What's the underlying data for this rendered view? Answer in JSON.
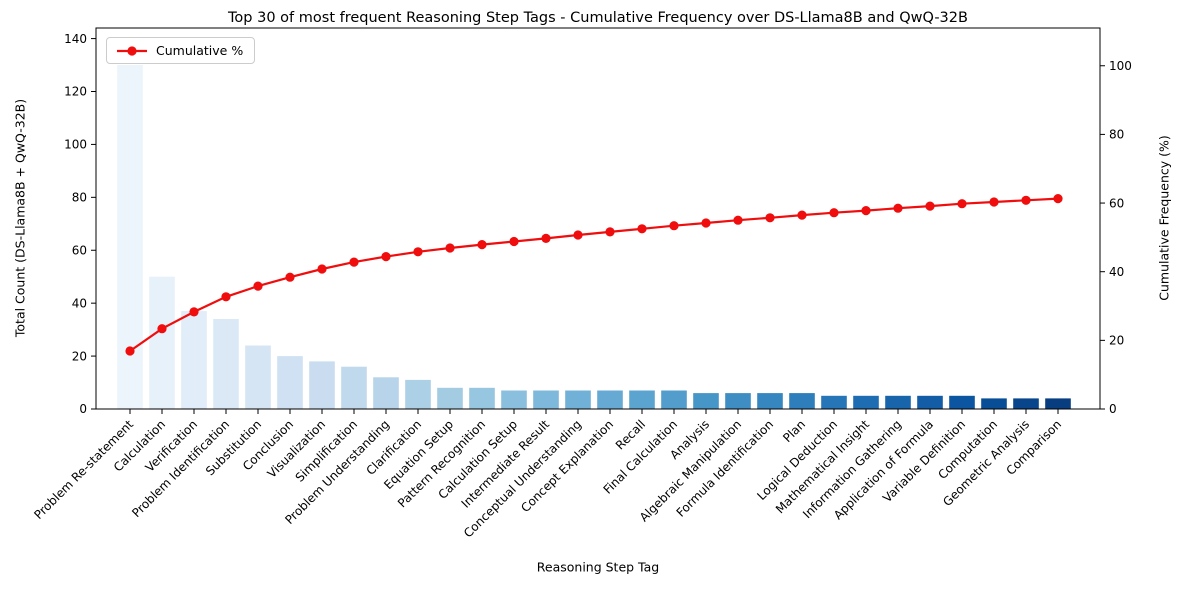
{
  "chart_data": {
    "type": "bar",
    "subtype": "pareto (bar + cumulative line)",
    "title": "Top 30 of most frequent Reasoning Step Tags - Cumulative Frequency over DS-Llama8B and QwQ-32B",
    "xlabel": "Reasoning Step Tag",
    "categories": [
      "Problem Re-statement",
      "Calculation",
      "Verification",
      "Problem Identification",
      "Substitution",
      "Conclusion",
      "Visualization",
      "Simplification",
      "Problem Understanding",
      "Clarification",
      "Equation Setup",
      "Pattern Recognition",
      "Calculation Setup",
      "Intermediate Result",
      "Conceptual Understanding",
      "Concept Explanation",
      "Recall",
      "Final Calculation",
      "Analysis",
      "Algebraic Manipulation",
      "Formula Identification",
      "Plan",
      "Logical Deduction",
      "Mathematical Insight",
      "Information Gathering",
      "Application of Formula",
      "Variable Definition",
      "Computation",
      "Geometric Analysis",
      "Comparison"
    ],
    "series": [
      {
        "name": "Total Count (DS-Llama8B + QwQ-32B)",
        "type": "bar",
        "axis": "left",
        "values": [
          130,
          50,
          37,
          34,
          24,
          20,
          18,
          16,
          12,
          11,
          8,
          8,
          7,
          7,
          7,
          7,
          7,
          7,
          6,
          6,
          6,
          6,
          5,
          5,
          5,
          5,
          5,
          4,
          4,
          4
        ]
      },
      {
        "name": "Cumulative %",
        "type": "line",
        "axis": "right",
        "color": "#f00d0d",
        "values": [
          16.9,
          23.4,
          28.3,
          32.7,
          35.8,
          38.4,
          40.8,
          42.8,
          44.4,
          45.8,
          46.9,
          47.9,
          48.8,
          49.7,
          50.7,
          51.6,
          52.5,
          53.4,
          54.2,
          55.0,
          55.7,
          56.5,
          57.2,
          57.8,
          58.5,
          59.1,
          59.8,
          60.3,
          60.8,
          61.3
        ]
      }
    ],
    "left_axis": {
      "label": "Total Count (DS-Llama8B + QwQ-32B)",
      "ticks": [
        0,
        20,
        40,
        60,
        80,
        100,
        120,
        140
      ],
      "range": [
        0,
        144
      ]
    },
    "right_axis": {
      "label": "Cumulative Frequency (%)",
      "ticks": [
        0,
        20,
        40,
        60,
        80,
        100
      ],
      "range": [
        0,
        111
      ]
    },
    "legend": {
      "position": "upper-left",
      "entries": [
        "Cumulative %"
      ]
    },
    "grid": false,
    "bar_colors": [
      "#edf5fc",
      "#e7f1fa",
      "#e1edf8",
      "#dbe9f6",
      "#d5e5f4",
      "#cfe1f2",
      "#c9dcf0",
      "#c1d9ed",
      "#b7d4ea",
      "#acd0e6",
      "#a3cce3",
      "#97c6e0",
      "#8abfdd",
      "#7eb8da",
      "#71b1d7",
      "#66aad4",
      "#5ba4d0",
      "#529dcc",
      "#4796c8",
      "#3e8ec4",
      "#3686c0",
      "#2e7ebc",
      "#2575b7",
      "#1e6db2",
      "#1865ac",
      "#125da6",
      "#0c55a0",
      "#084e97",
      "#08458b",
      "#083d7f"
    ],
    "spine_color": "#000000",
    "background_color": "#ffffff"
  }
}
